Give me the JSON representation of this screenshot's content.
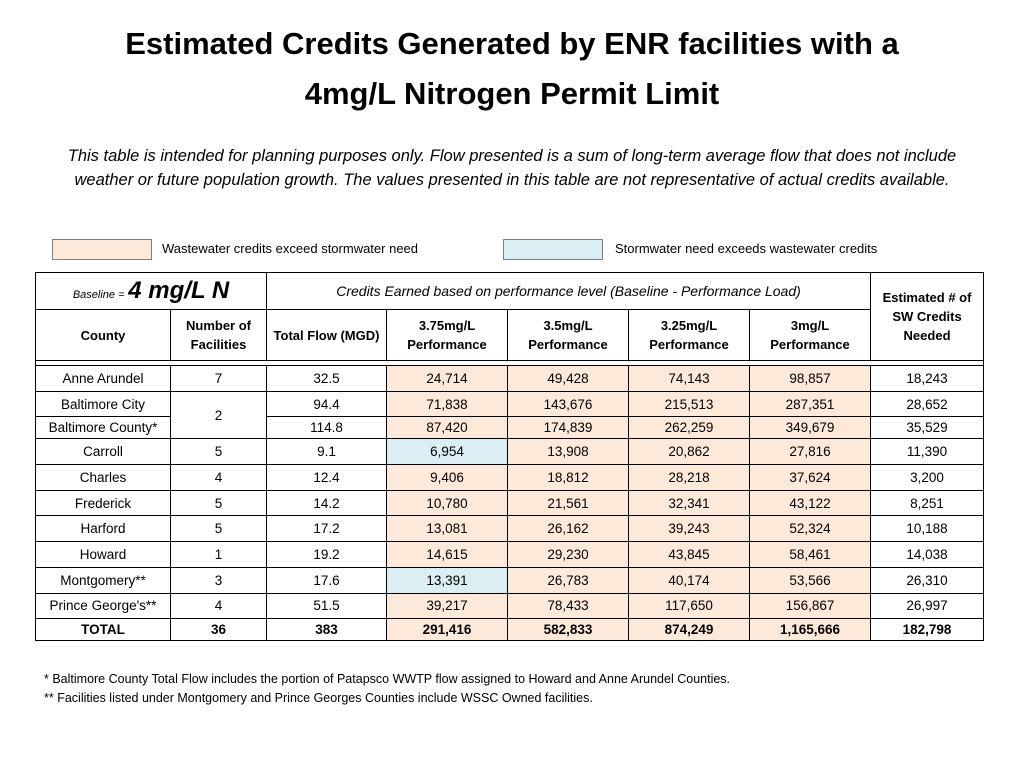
{
  "header": {
    "title_line1": "Estimated Credits Generated by ENR facilities with a",
    "title_line2": "4mg/L Nitrogen Permit Limit",
    "subtitle": "This table is intended for planning purposes only. Flow presented is a sum of long-term average flow that does not include weather or future population growth. The values presented in this table are not representative of actual credits available."
  },
  "legend": [
    {
      "label": "Wastewater credits exceed stormwater need",
      "color": "#fde9d9"
    },
    {
      "label": "Stormwater need exceeds wastewater credits",
      "color": "#dbeef4"
    }
  ],
  "table": {
    "baseline_label": "Baseline =",
    "baseline_value": "4 mg/L N",
    "group_header": "Credits Earned based on performance level (Baseline - Performance Load)",
    "needed_header": "Estimated # of SW Credits Needed",
    "columns": [
      "County",
      "Number of Facilities",
      "Total Flow (MGD)",
      "3.75mg/L Performance",
      "3.5mg/L Performance",
      "3.25mg/L Performance",
      "3mg/L Performance"
    ],
    "rows": [
      {
        "county": "Anne Arundel",
        "facilities": "7",
        "flow": "32.5",
        "credits": [
          "24,714",
          "49,428",
          "74,143",
          "98,857"
        ],
        "credit_colors": [
          "#fde9d9",
          "#fde9d9",
          "#fde9d9",
          "#fde9d9"
        ],
        "needed": "18,243"
      },
      {
        "county": "Baltimore City",
        "facilities": "2",
        "flow": "94.4",
        "credits": [
          "71,838",
          "143,676",
          "215,513",
          "287,351"
        ],
        "credit_colors": [
          "#fde9d9",
          "#fde9d9",
          "#fde9d9",
          "#fde9d9"
        ],
        "needed": "28,652"
      },
      {
        "county": "Baltimore County*",
        "flow": "114.8",
        "credits": [
          "87,420",
          "174,839",
          "262,259",
          "349,679"
        ],
        "credit_colors": [
          "#fde9d9",
          "#fde9d9",
          "#fde9d9",
          "#fde9d9"
        ],
        "needed": "35,529"
      },
      {
        "county": "Carroll",
        "facilities": "5",
        "flow": "9.1",
        "credits": [
          "6,954",
          "13,908",
          "20,862",
          "27,816"
        ],
        "credit_colors": [
          "#dbeef4",
          "#fde9d9",
          "#fde9d9",
          "#fde9d9"
        ],
        "needed": "11,390"
      },
      {
        "county": "Charles",
        "facilities": "4",
        "flow": "12.4",
        "credits": [
          "9,406",
          "18,812",
          "28,218",
          "37,624"
        ],
        "credit_colors": [
          "#fde9d9",
          "#fde9d9",
          "#fde9d9",
          "#fde9d9"
        ],
        "needed": "3,200"
      },
      {
        "county": "Frederick",
        "facilities": "5",
        "flow": "14.2",
        "credits": [
          "10,780",
          "21,561",
          "32,341",
          "43,122"
        ],
        "credit_colors": [
          "#fde9d9",
          "#fde9d9",
          "#fde9d9",
          "#fde9d9"
        ],
        "needed": "8,251"
      },
      {
        "county": "Harford",
        "facilities": "5",
        "flow": "17.2",
        "credits": [
          "13,081",
          "26,162",
          "39,243",
          "52,324"
        ],
        "credit_colors": [
          "#fde9d9",
          "#fde9d9",
          "#fde9d9",
          "#fde9d9"
        ],
        "needed": "10,188"
      },
      {
        "county": "Howard",
        "facilities": "1",
        "flow": "19.2",
        "credits": [
          "14,615",
          "29,230",
          "43,845",
          "58,461"
        ],
        "credit_colors": [
          "#fde9d9",
          "#fde9d9",
          "#fde9d9",
          "#fde9d9"
        ],
        "needed": "14,038"
      },
      {
        "county": "Montgomery**",
        "facilities": "3",
        "flow": "17.6",
        "credits": [
          "13,391",
          "26,783",
          "40,174",
          "53,566"
        ],
        "credit_colors": [
          "#dbeef4",
          "#fde9d9",
          "#fde9d9",
          "#fde9d9"
        ],
        "needed": "26,310"
      },
      {
        "county": "Prince George's**",
        "facilities": "4",
        "flow": "51.5",
        "credits": [
          "39,217",
          "78,433",
          "117,650",
          "156,867"
        ],
        "credit_colors": [
          "#fde9d9",
          "#fde9d9",
          "#fde9d9",
          "#fde9d9"
        ],
        "needed": "26,997"
      }
    ],
    "total": {
      "county": "TOTAL",
      "facilities": "36",
      "flow": "383",
      "credits": [
        "291,416",
        "582,833",
        "874,249",
        "1,165,666"
      ],
      "credit_colors": [
        "#fde9d9",
        "#fde9d9",
        "#fde9d9",
        "#fde9d9"
      ],
      "needed": "182,798"
    }
  },
  "footnotes": [
    "* Baltimore County Total Flow includes the portion of Patapsco WWTP flow assigned to Howard and Anne Arundel Counties.",
    "** Facilities listed under Montgomery and Prince Georges Counties include WSSC Owned facilities."
  ]
}
